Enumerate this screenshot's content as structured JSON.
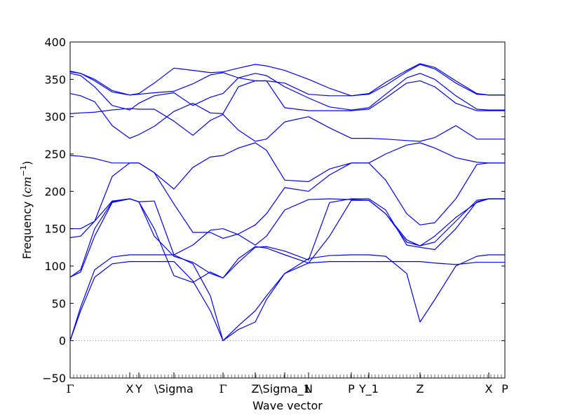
{
  "chart_data": {
    "type": "line",
    "title": "",
    "xlabel": "Wave vector",
    "ylabel": "Frequency (",
    "ylabel_math": "cm",
    "ylabel_exp": "−1",
    "ylabel_end": ")",
    "ylim": [
      -50,
      400
    ],
    "yticks": [
      -50,
      0,
      50,
      100,
      150,
      200,
      250,
      300,
      350,
      400
    ],
    "grid": false,
    "legend": "none",
    "line_color": "#0000ff",
    "zero_line": {
      "y": 0,
      "style": "dotted",
      "color": "#808080"
    },
    "x_range": [
      0,
      6.2
    ],
    "xticks": [
      {
        "x": 0.0,
        "label": "Γ"
      },
      {
        "x": 0.85,
        "label": "X"
      },
      {
        "x": 0.98,
        "label": "Y"
      },
      {
        "x": 1.48,
        "label": "\\Sigma"
      },
      {
        "x": 2.18,
        "label": "Γ"
      },
      {
        "x": 2.64,
        "label": "Z"
      },
      {
        "x": 3.06,
        "label": "\\Sigma_1"
      },
      {
        "x": 3.4,
        "label": "N"
      },
      {
        "x": 4.01,
        "label": "P"
      },
      {
        "x": 4.26,
        "label": "Y_1"
      },
      {
        "x": 4.99,
        "label": "Z"
      },
      {
        "x": 5.97,
        "label": "X"
      },
      {
        "x": 6.2,
        "label": "P"
      }
    ],
    "series": [
      {
        "x": [
          0,
          0.15,
          0.35,
          0.6,
          0.85,
          0.98,
          1.2,
          1.48,
          1.75,
          2.0,
          2.18,
          2.4,
          2.64,
          2.8,
          3.06,
          3.4,
          3.7,
          4.01,
          4.26,
          4.5,
          4.8,
          4.99,
          5.2,
          5.5,
          5.8,
          5.97,
          6.2
        ],
        "values": [
          0,
          40,
          85,
          103,
          106,
          106,
          106,
          106,
          80,
          40,
          0,
          20,
          40,
          60,
          90,
          104,
          106,
          106,
          106,
          106,
          106,
          106,
          104,
          102,
          105,
          105,
          105
        ]
      },
      {
        "x": [
          0,
          0.15,
          0.35,
          0.6,
          0.85,
          0.98,
          1.2,
          1.48,
          1.75,
          2.0,
          2.18,
          2.4,
          2.64,
          2.8,
          3.06,
          3.4,
          3.7,
          4.01,
          4.26,
          4.5,
          4.8,
          4.99,
          5.2,
          5.5,
          5.8,
          5.97,
          6.2
        ],
        "values": [
          0,
          45,
          95,
          112,
          115,
          115,
          115,
          115,
          103,
          60,
          0,
          15,
          25,
          55,
          90,
          110,
          114,
          115,
          115,
          113,
          90,
          25,
          55,
          100,
          113,
          115,
          115
        ]
      },
      {
        "x": [
          0,
          0.15,
          0.35,
          0.6,
          0.85,
          0.98,
          1.2,
          1.48,
          1.75,
          2.0,
          2.18,
          2.4,
          2.64,
          2.8,
          3.06,
          3.4,
          3.7,
          4.01,
          4.26,
          4.5,
          4.8,
          4.99,
          5.2,
          5.5,
          5.8,
          5.97,
          6.2
        ],
        "values": [
          85,
          92,
          140,
          185,
          190,
          186,
          150,
          87,
          78,
          92,
          84,
          110,
          126,
          124,
          115,
          104,
          140,
          188,
          188,
          170,
          132,
          127,
          132,
          160,
          188,
          190,
          190
        ]
      },
      {
        "x": [
          0,
          0.15,
          0.35,
          0.6,
          0.85,
          0.98,
          1.2,
          1.48,
          1.75,
          2.0,
          2.18,
          2.4,
          2.64,
          2.8,
          3.06,
          3.4,
          3.7,
          4.01,
          4.26,
          4.5,
          4.8,
          4.99,
          5.2,
          5.5,
          5.8,
          5.97,
          6.2
        ],
        "values": [
          85,
          95,
          150,
          186,
          190,
          186,
          140,
          113,
          105,
          90,
          84,
          105,
          125,
          126,
          120,
          108,
          185,
          190,
          190,
          175,
          128,
          125,
          122,
          150,
          186,
          190,
          190
        ]
      },
      {
        "x": [
          0,
          0.15,
          0.35,
          0.6,
          0.85,
          0.98,
          1.2,
          1.48,
          1.75,
          2.0,
          2.18,
          2.4,
          2.64,
          2.8,
          3.06,
          3.4,
          3.7,
          4.01,
          4.26,
          4.5,
          4.8,
          4.99,
          5.2,
          5.5,
          5.8,
          5.97,
          6.2
        ],
        "values": [
          138,
          140,
          160,
          187,
          190,
          186,
          187,
          115,
          128,
          148,
          150,
          142,
          128,
          140,
          175,
          189,
          190,
          189,
          188,
          170,
          135,
          127,
          140,
          165,
          185,
          190,
          190
        ]
      },
      {
        "x": [
          0,
          0.15,
          0.35,
          0.6,
          0.85,
          0.98,
          1.2,
          1.48,
          1.75,
          2.0,
          2.18,
          2.4,
          2.64,
          2.8,
          3.06,
          3.4,
          3.7,
          4.01,
          4.26,
          4.5,
          4.8,
          4.99,
          5.2,
          5.5,
          5.8,
          5.97,
          6.2
        ],
        "values": [
          150,
          150,
          160,
          220,
          238,
          238,
          225,
          183,
          145,
          145,
          137,
          143,
          155,
          170,
          205,
          200,
          222,
          238,
          238,
          215,
          170,
          155,
          158,
          190,
          236,
          238,
          238
        ]
      },
      {
        "x": [
          0,
          0.15,
          0.35,
          0.6,
          0.85,
          0.98,
          1.2,
          1.48,
          1.75,
          2.0,
          2.18,
          2.4,
          2.64,
          2.8,
          3.06,
          3.4,
          3.7,
          4.01,
          4.26,
          4.5,
          4.8,
          4.99,
          5.2,
          5.5,
          5.8,
          5.97,
          6.2
        ],
        "values": [
          248,
          247,
          244,
          238,
          238,
          238,
          225,
          203,
          232,
          246,
          248,
          258,
          265,
          255,
          215,
          213,
          230,
          238,
          238,
          250,
          262,
          265,
          258,
          245,
          239,
          238,
          238
        ]
      },
      {
        "x": [
          0,
          0.15,
          0.35,
          0.6,
          0.85,
          0.98,
          1.2,
          1.48,
          1.75,
          2.0,
          2.18,
          2.4,
          2.64,
          2.8,
          3.06,
          3.4,
          3.7,
          4.01,
          4.26,
          4.5,
          4.8,
          4.99,
          5.2,
          5.5,
          5.8,
          5.97,
          6.2
        ],
        "values": [
          304,
          305,
          306,
          309,
          311,
          310,
          310,
          294,
          275,
          295,
          303,
          282,
          267,
          270,
          293,
          300,
          285,
          271,
          271,
          270,
          268,
          267,
          272,
          288,
          270,
          270,
          270
        ]
      },
      {
        "x": [
          0,
          0.15,
          0.35,
          0.6,
          0.85,
          0.98,
          1.2,
          1.48,
          1.75,
          2.0,
          2.18,
          2.4,
          2.64,
          2.8,
          3.06,
          3.4,
          3.7,
          4.01,
          4.26,
          4.5,
          4.8,
          4.99,
          5.2,
          5.5,
          5.8,
          5.97,
          6.2
        ],
        "values": [
          331,
          328,
          320,
          288,
          271,
          276,
          287,
          307,
          318,
          305,
          304,
          340,
          348,
          348,
          312,
          308,
          308,
          308,
          310,
          325,
          345,
          348,
          340,
          318,
          308,
          308,
          308
        ]
      },
      {
        "x": [
          0,
          0.15,
          0.35,
          0.6,
          0.85,
          0.98,
          1.2,
          1.48,
          1.75,
          2.0,
          2.18,
          2.4,
          2.64,
          2.8,
          3.06,
          3.4,
          3.7,
          4.01,
          4.26,
          4.5,
          4.8,
          4.99,
          5.2,
          5.5,
          5.8,
          5.97,
          6.2
        ],
        "values": [
          358,
          355,
          340,
          315,
          309,
          318,
          328,
          332,
          315,
          326,
          331,
          352,
          358,
          355,
          340,
          325,
          313,
          309,
          312,
          330,
          352,
          358,
          350,
          328,
          310,
          309,
          309
        ]
      },
      {
        "x": [
          0,
          0.15,
          0.35,
          0.6,
          0.85,
          0.98,
          1.2,
          1.48,
          1.75,
          2.0,
          2.18,
          2.4,
          2.64,
          2.8,
          3.06,
          3.4,
          3.7,
          4.01,
          4.26,
          4.5,
          4.8,
          4.99,
          5.2,
          5.5,
          5.8,
          5.97,
          6.2
        ],
        "values": [
          360,
          358,
          348,
          333,
          329,
          330,
          332,
          334,
          344,
          356,
          359,
          352,
          348,
          348,
          345,
          330,
          328,
          328,
          330,
          342,
          360,
          370,
          364,
          345,
          330,
          329,
          329
        ]
      },
      {
        "x": [
          0,
          0.15,
          0.35,
          0.6,
          0.85,
          0.98,
          1.2,
          1.48,
          1.75,
          2.0,
          2.18,
          2.4,
          2.64,
          2.8,
          3.06,
          3.4,
          3.7,
          4.01,
          4.26,
          4.5,
          4.8,
          4.99,
          5.2,
          5.5,
          5.8,
          5.97,
          6.2
        ],
        "values": [
          361,
          358,
          350,
          335,
          329,
          331,
          345,
          365,
          362,
          359,
          360,
          365,
          370,
          368,
          362,
          350,
          338,
          328,
          331,
          346,
          362,
          371,
          366,
          348,
          331,
          329,
          329
        ]
      }
    ]
  }
}
